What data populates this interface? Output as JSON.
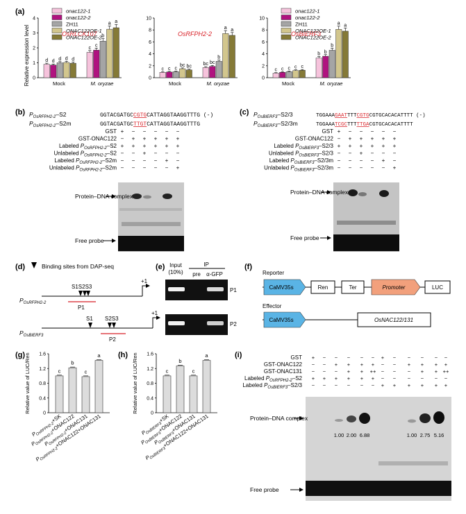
{
  "colors": {
    "onac1": "#f6c3dc",
    "onac2": "#b0127f",
    "zh11": "#a5a5a5",
    "oe1": "#d2c68d",
    "oe2": "#857a37",
    "red": "#d81f26",
    "blue": "#5ab4e5",
    "orange": "#f2a07c"
  },
  "panel_a": {
    "label": "(a)",
    "legend": [
      "onac122-1",
      "onac122-2",
      "ZH11",
      "ONAC122OE-1",
      "ONAC122OE-2"
    ],
    "ylabel": "Relative expression level",
    "groups": [
      "Mock",
      "M. oryzae"
    ]
  },
  "chart_data": [
    {
      "type": "bar",
      "title": "OsRLCK107",
      "ylabel": "Relative expression level",
      "ylim": [
        0,
        4
      ],
      "yticks": [
        "0",
        "1",
        "2",
        "3",
        "4"
      ],
      "categories": [
        "Mock",
        "M. oryzae"
      ],
      "series": [
        {
          "name": "onac122-1",
          "values": [
            0.9,
            1.7
          ],
          "letters": [
            "d",
            "c"
          ]
        },
        {
          "name": "onac122-2",
          "values": [
            0.85,
            1.85
          ],
          "letters": [
            "d",
            "c"
          ]
        },
        {
          "name": "ZH11",
          "values": [
            1.0,
            2.45
          ],
          "letters": [
            "d",
            "b"
          ]
        },
        {
          "name": "ONAC122OE-1",
          "values": [
            1.02,
            3.25
          ],
          "letters": [
            "d",
            "a"
          ]
        },
        {
          "name": "ONAC122OE-2",
          "values": [
            0.97,
            3.35
          ],
          "letters": [
            "d",
            "a"
          ]
        }
      ]
    },
    {
      "type": "bar",
      "title": "OsRFPH2-2",
      "ylabel": "Relative expression level",
      "ylim": [
        0,
        10
      ],
      "yticks": [
        "0",
        "2",
        "4",
        "6",
        "8",
        "10"
      ],
      "categories": [
        "Mock",
        "M. oryzae"
      ],
      "series": [
        {
          "name": "onac122-1",
          "values": [
            0.9,
            1.7
          ],
          "letters": [
            "c",
            "bc"
          ]
        },
        {
          "name": "onac122-2",
          "values": [
            0.95,
            1.9
          ],
          "letters": [
            "c",
            "bc"
          ]
        },
        {
          "name": "ZH11",
          "values": [
            1.0,
            2.75
          ],
          "letters": [
            "c",
            "b"
          ]
        },
        {
          "name": "ONAC122OE-1",
          "values": [
            1.5,
            7.4
          ],
          "letters": [
            "bc",
            "a"
          ]
        },
        {
          "name": "ONAC122OE-2",
          "values": [
            1.3,
            7.1
          ],
          "letters": [
            "bc",
            "a"
          ]
        }
      ]
    },
    {
      "type": "bar",
      "title": "OsBIERF3",
      "ylabel": "Relative expression level",
      "ylim": [
        0,
        10
      ],
      "yticks": [
        "0",
        "2",
        "4",
        "6",
        "8",
        "10"
      ],
      "categories": [
        "Mock",
        "M. oryzae"
      ],
      "series": [
        {
          "name": "onac122-1",
          "values": [
            0.75,
            3.3
          ],
          "letters": [
            "c",
            "b"
          ]
        },
        {
          "name": "onac122-2",
          "values": [
            0.9,
            3.6
          ],
          "letters": [
            "c",
            "b"
          ]
        },
        {
          "name": "ZH11",
          "values": [
            1.0,
            4.6
          ],
          "letters": [
            "c",
            "b"
          ]
        },
        {
          "name": "ONAC122OE-1",
          "values": [
            1.2,
            8.1
          ],
          "letters": [
            "c",
            "a"
          ]
        },
        {
          "name": "ONAC122OE-2",
          "values": [
            1.25,
            7.8
          ],
          "letters": [
            "c",
            "a"
          ]
        }
      ]
    },
    {
      "type": "bar",
      "title": "",
      "ylabel": "Relative value of LUC/Ren",
      "ylim": [
        0,
        1.6
      ],
      "yticks": [
        "0",
        "0.4",
        "0.8",
        "1.2",
        "1.6"
      ],
      "categories": [
        "PRFPH2-2+SK",
        "PRFPH2-2+ONAC122",
        "PRFPH2-2+ONAC131",
        "PRFPH2-2+ONAC122+ONAC131"
      ],
      "values": [
        1.0,
        1.22,
        0.98,
        1.42
      ],
      "letters": [
        "c",
        "b",
        "c",
        "a"
      ]
    },
    {
      "type": "bar",
      "title": "",
      "ylabel": "Relative value of LUC/Ren",
      "ylim": [
        0,
        1.6
      ],
      "yticks": [
        "0",
        "0.4",
        "0.8",
        "1.2",
        "1.6"
      ],
      "categories": [
        "PBIERF3+SK",
        "PBIERF3+ONAC122",
        "PBIERF3+ONAC131",
        "PBIERF3+ONAC122+ONAC131"
      ],
      "values": [
        1.0,
        1.27,
        1.0,
        1.42
      ],
      "letters": [
        "c",
        "b",
        "c",
        "a"
      ]
    }
  ],
  "panel_b": {
    "label": "(b)",
    "seq1_name": "S2",
    "seq1_pre": "GGTACGATGC",
    "seq1_mut": "CGTG",
    "seq1_post": "CATTAGGTAAGGTTTG (-)",
    "seq2_name": "S2m",
    "seq2_pre": "GGTACGATGC",
    "seq2_mut": "TTGT",
    "seq2_post": "CATTAGGTAAGGTTTG",
    "prom": "OsRFPH2-2",
    "rows": [
      "GST",
      "GST-ONAC122",
      "Labeled P",
      "Unlabeled P",
      "Labeled P",
      "Unlabeled P"
    ],
    "row_suffix": [
      "",
      "",
      "–S2",
      "–S2",
      "–S2m",
      "–S2m"
    ],
    "signs": [
      [
        "+",
        "−",
        "−",
        "−",
        "−",
        "−"
      ],
      [
        "−",
        "+",
        "+",
        "+",
        "+",
        "+"
      ],
      [
        "+",
        "+",
        "+",
        "+",
        "+",
        "+"
      ],
      [
        "−",
        "−",
        "+",
        "−",
        "−",
        "−"
      ],
      [
        "−",
        "−",
        "−",
        "−",
        "+",
        "−"
      ],
      [
        "−",
        "−",
        "−",
        "−",
        "−",
        "+"
      ]
    ],
    "complex_label": "Protein–DNA complex",
    "free_label": "Free probe"
  },
  "panel_c": {
    "label": "(c)",
    "seq1_name": "S2/3",
    "seq1_pre": "TGGAAA",
    "seq1_mut1": "GAAT",
    "seq1_mid": "TTT",
    "seq1_mut2": "CGTG",
    "seq1_post": "CGTGCACACATTTT (-)",
    "seq2_name": "S2/3m",
    "seq2_pre": "TGGAAA",
    "seq2_mut1": "TCGC",
    "seq2_mid": "TTT",
    "seq2_mut2": "TTGA",
    "seq2_post": "CGTGCACACATTTT",
    "prom": "OsBIERF3",
    "rows": [
      "GST",
      "GST-ONAC122",
      "Labeled P",
      "Unlabeled P",
      "Labeled P",
      "Unlabeled P"
    ],
    "row_suffix": [
      "",
      "",
      "–S2/3",
      "–S2/3",
      "–S2/3m",
      "–S2/3m"
    ],
    "signs": [
      [
        "+",
        "−",
        "−",
        "−",
        "−",
        "−"
      ],
      [
        "−",
        "+",
        "+",
        "+",
        "+",
        "+"
      ],
      [
        "+",
        "+",
        "+",
        "+",
        "+",
        "+"
      ],
      [
        "−",
        "−",
        "+",
        "−",
        "−",
        "−"
      ],
      [
        "−",
        "−",
        "−",
        "−",
        "+",
        "−"
      ],
      [
        "−",
        "−",
        "−",
        "−",
        "−",
        "+"
      ]
    ],
    "complex_label": "Protein–DNA complex",
    "free_label": "Free probe"
  },
  "panel_d": {
    "label": "(d)",
    "legend": "Binding sites from DAP-seq",
    "prom1": "OsRFPH2-2",
    "prom2": "OsBIERF3",
    "plus1": "+1",
    "sites1": "S1S2S3",
    "sites2a": "S1",
    "sites2b": "S2S3",
    "region1": "P1",
    "region2": "P2"
  },
  "panel_e": {
    "label": "(e)",
    "input": "Input",
    "input_pct": "(10%)",
    "ip": "IP",
    "pre": "pre",
    "agfp": "α-GFP",
    "p1": "P1",
    "p2": "P2"
  },
  "panel_f": {
    "label": "(f)",
    "reporter": "Reporter",
    "effector": "Effector",
    "camv": "CaMV35s",
    "ren": "Ren",
    "ter": "Ter",
    "promoter": "Promoter",
    "luc": "LUC",
    "gene": "OsNAC122/131"
  },
  "panel_g": {
    "label": "(g)",
    "prom": "OsRFPH2-2",
    "xlabels": [
      "+SK",
      "+ONAC122",
      "+ONAC131",
      "+ONAC122+ONAC131"
    ]
  },
  "panel_h": {
    "label": "(h)",
    "prom": "OsBIERF3",
    "xlabels": [
      "+SK",
      "+ONAC122",
      "+ONAC131",
      "+ONAC122+ONAC131"
    ]
  },
  "panel_i": {
    "label": "(i)",
    "rows": [
      "GST",
      "GST-ONAC122",
      "GST-ONAC131",
      "Labeled P",
      "Labeled P"
    ],
    "row_suffix": [
      "",
      "",
      "",
      "–S2",
      "–S2/3"
    ],
    "signs": [
      [
        "+",
        "−",
        "−",
        "−",
        "−",
        "−",
        "+",
        "−",
        "−",
        "−",
        "−",
        "−"
      ],
      [
        "−",
        "−",
        "+",
        "+",
        "+",
        "+",
        "−",
        "−",
        "+",
        "+",
        "+",
        "+"
      ],
      [
        "−",
        "−",
        "−",
        "+",
        "+",
        "++",
        "−",
        "−",
        "−",
        "+",
        "+",
        "++"
      ],
      [
        "+",
        "+",
        "+",
        "+",
        "+",
        "+",
        "−",
        "−",
        "−",
        "−",
        "−",
        "−"
      ],
      [
        "−",
        "−",
        "−",
        "−",
        "−",
        "−",
        "+",
        "+",
        "+",
        "+",
        "+",
        "+"
      ]
    ],
    "quant": [
      "1.00",
      "2.00",
      "6.88",
      "1.00",
      "2.75",
      "5.16"
    ],
    "complex_label": "Protein–DNA complex",
    "free_label": "Free probe"
  }
}
